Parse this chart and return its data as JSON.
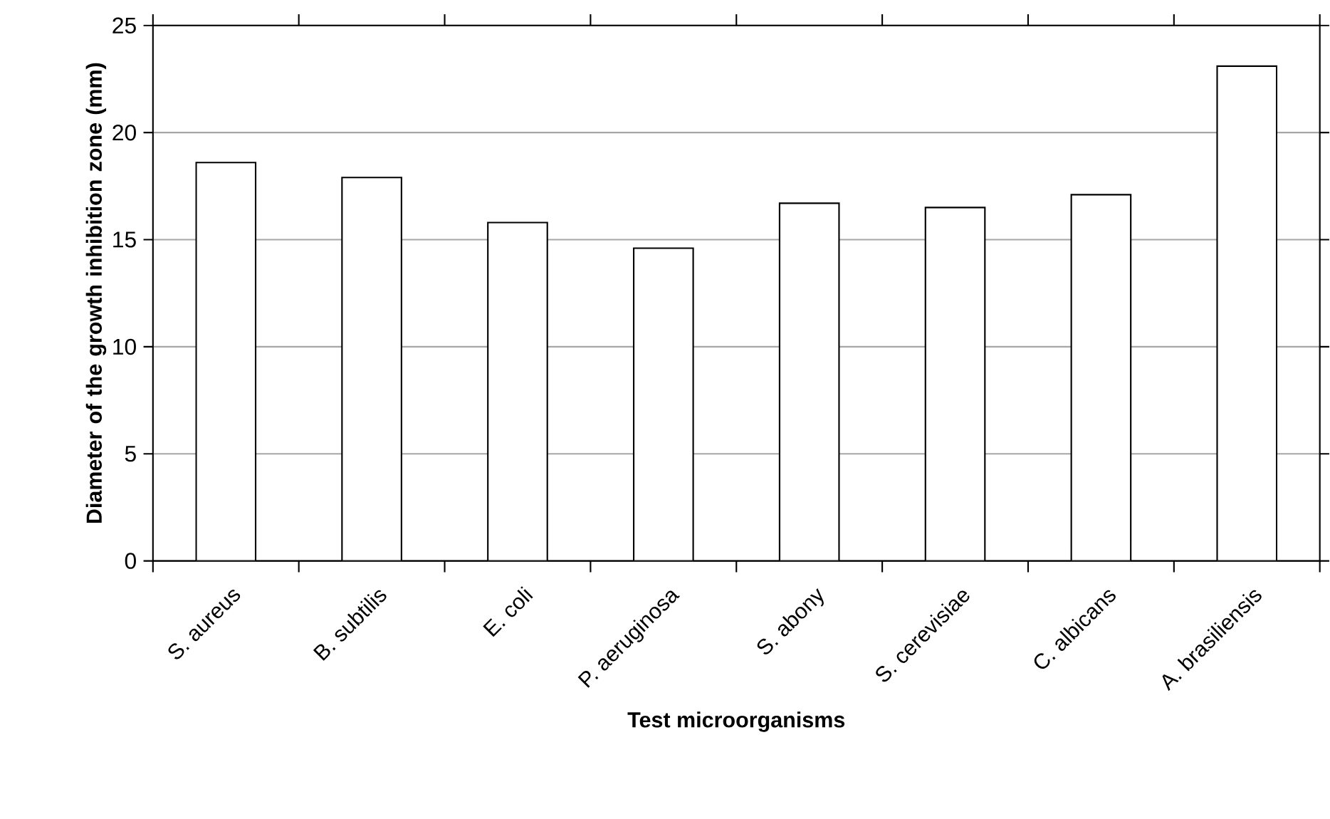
{
  "chart_data": {
    "type": "bar",
    "xlabel": "Test microorganisms",
    "ylabel": "Diameter of the growth  inhibition zone (mm)",
    "categories": [
      "S. aureus",
      "B. subtilis",
      "E. coli",
      "P. aeruginosa",
      "S. abony",
      "S. cerevisiae",
      "C. albicans",
      "A. brasiliensis"
    ],
    "values": [
      18.6,
      17.9,
      15.8,
      14.6,
      16.7,
      16.5,
      17.1,
      23.1
    ],
    "color": "#ffffff",
    "ylim": [
      0,
      25
    ],
    "yticks": [
      0,
      5,
      10,
      15,
      20,
      25
    ],
    "grid": "y"
  }
}
